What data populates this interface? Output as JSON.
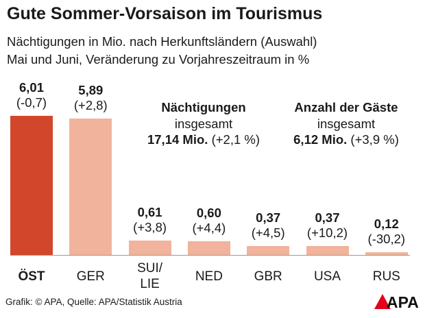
{
  "chart_data": {
    "type": "bar",
    "title": "Gute Sommer-Vorsaison im Tourismus",
    "subtitle": [
      "Nächtigungen in Mio. nach Herkunftsländern (Auswahl)",
      "Mai und Juni, Veränderung zu Vorjahreszeitraum in %"
    ],
    "categories": [
      "ÖST",
      "GER",
      "SUI/ LIE",
      "NED",
      "GBR",
      "USA",
      "RUS"
    ],
    "values": [
      6.01,
      5.89,
      0.61,
      0.6,
      0.37,
      0.37,
      0.12
    ],
    "value_labels": [
      "6,01",
      "5,89",
      "0,61",
      "0,60",
      "0,37",
      "0,37",
      "0,12"
    ],
    "change_labels": [
      "(-0,7)",
      "(+2,8)",
      "(+3,8)",
      "(+4,4)",
      "(+4,5)",
      "(+10,2)",
      "(-30,2)"
    ],
    "colors": [
      "#d2472c",
      "#f1b39b",
      "#f1b39b",
      "#f1b39b",
      "#f1b39b",
      "#f1b39b",
      "#f1b39b"
    ],
    "highlight_index": 0,
    "ylim": [
      0,
      6.5
    ],
    "annotations": [
      {
        "title": "Nächtigungen",
        "subtitle": "insgesamt",
        "value": "17,14 Mio.",
        "change": "(+2,1 %)"
      },
      {
        "title": "Anzahl der Gäste",
        "subtitle": "insgesamt",
        "value": "6,12 Mio.",
        "change": "(+3,9 %)"
      }
    ],
    "source": "Grafik: © APA, Quelle: APA/Statistik Austria",
    "logo": "APA"
  }
}
